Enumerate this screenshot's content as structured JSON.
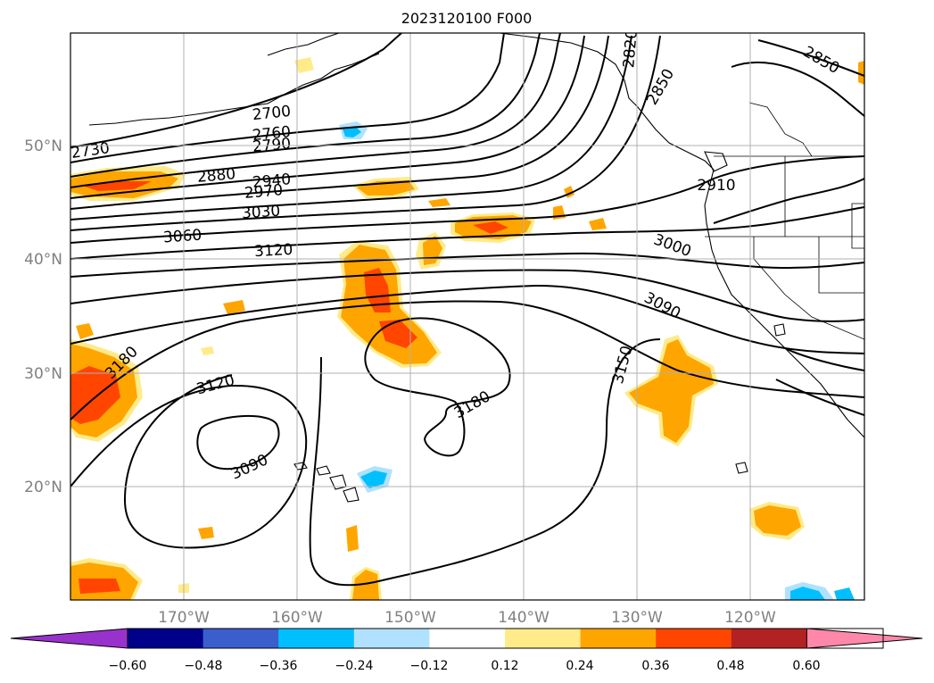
{
  "title": "2023120100 F000",
  "map": {
    "lon_labels": [
      "170°W",
      "160°W",
      "150°W",
      "140°W",
      "130°W",
      "120°W"
    ],
    "lat_labels": [
      "50°N",
      "40°N",
      "30°N",
      "20°N"
    ],
    "contour_labels": [
      "2700",
      "2730",
      "2760",
      "2790",
      "2820",
      "2850",
      "2850",
      "2880",
      "2910",
      "2940",
      "2970",
      "3000",
      "3030",
      "3060",
      "3090",
      "3090",
      "3120",
      "3120",
      "3150",
      "3180",
      "3180"
    ]
  },
  "colorbar": {
    "ticks": [
      "−0.60",
      "−0.48",
      "−0.36",
      "−0.24",
      "−0.12",
      "0.12",
      "0.24",
      "0.36",
      "0.48",
      "0.60"
    ],
    "colors": [
      "#9932cc",
      "#00008b",
      "#3a5fcd",
      "#00bfff",
      "#b0e2ff",
      "#ffffff",
      "#ffeb8a",
      "#ffa500",
      "#ff4500",
      "#b22222",
      "#ff88aa"
    ]
  }
}
